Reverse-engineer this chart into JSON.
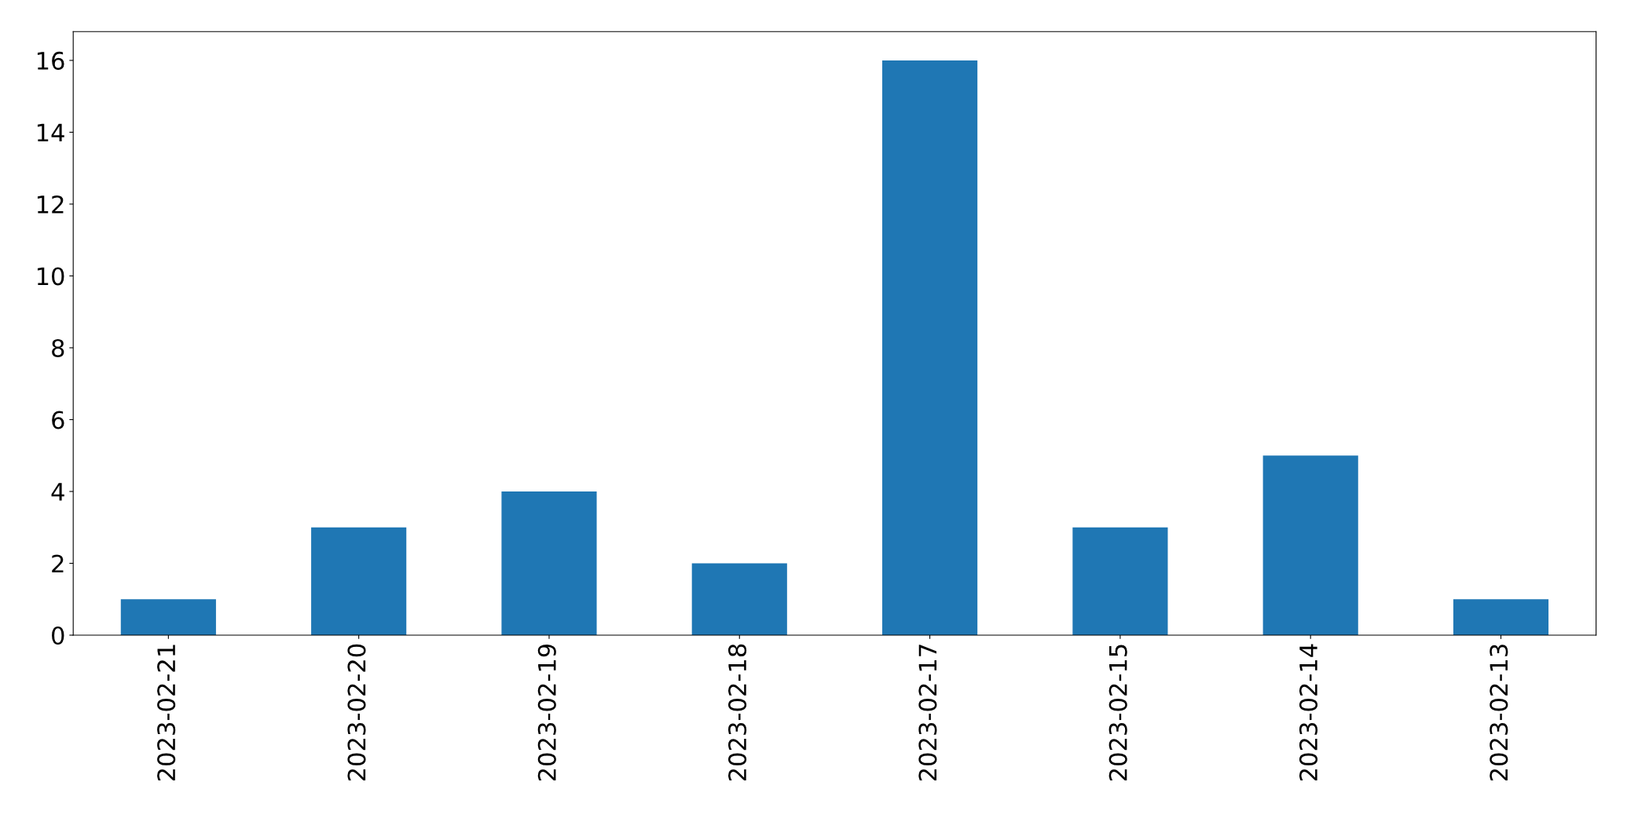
{
  "chart_data": {
    "type": "bar",
    "categories": [
      "2023-02-21",
      "2023-02-20",
      "2023-02-19",
      "2023-02-18",
      "2023-02-17",
      "2023-02-15",
      "2023-02-14",
      "2023-02-13"
    ],
    "values": [
      1,
      3,
      4,
      2,
      16,
      3,
      5,
      1
    ],
    "color": "#1f77b4",
    "ylim": [
      0,
      16.8
    ],
    "yticks": [
      0,
      2,
      4,
      6,
      8,
      10,
      12,
      14,
      16
    ],
    "grid": false
  }
}
